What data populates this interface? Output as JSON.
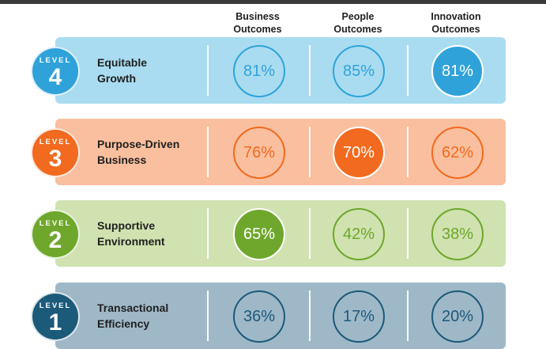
{
  "columns": [
    "Business\nOutcomes",
    "People\nOutcomes",
    "Innovation\nOutcomes"
  ],
  "colors": {
    "level4": {
      "accent": "#2fa3d9",
      "band": "#a9dcf1",
      "text": "#2fa3d9"
    },
    "level3": {
      "accent": "#f26a1f",
      "band": "#f9bf9e",
      "text": "#f26a1f"
    },
    "level2": {
      "accent": "#6fa72c",
      "band": "#cfe2b0",
      "text": "#6fa72c"
    },
    "level1": {
      "accent": "#1c5a7a",
      "band": "#9fb8c8",
      "text": "#1c5a7a"
    }
  },
  "rows": [
    {
      "level_word": "LEVEL",
      "level_num": "4",
      "title": "Equitable\nGrowth",
      "values": [
        "81%",
        "85%",
        "81%"
      ],
      "highlight": [
        false,
        false,
        true
      ]
    },
    {
      "level_word": "LEVEL",
      "level_num": "3",
      "title": "Purpose-Driven\nBusiness",
      "values": [
        "76%",
        "70%",
        "62%"
      ],
      "highlight": [
        false,
        true,
        false
      ]
    },
    {
      "level_word": "LEVEL",
      "level_num": "2",
      "title": "Supportive\nEnvironment",
      "values": [
        "65%",
        "42%",
        "38%"
      ],
      "highlight": [
        true,
        false,
        false
      ]
    },
    {
      "level_word": "LEVEL",
      "level_num": "1",
      "title": "Transactional\nEfficiency",
      "values": [
        "36%",
        "17%",
        "20%"
      ],
      "highlight": [
        false,
        false,
        false
      ]
    }
  ]
}
